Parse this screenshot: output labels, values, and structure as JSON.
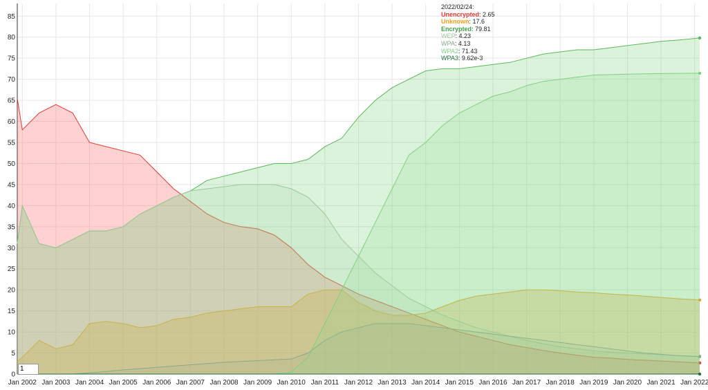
{
  "chart_data": {
    "type": "area",
    "ylim": [
      0,
      88
    ],
    "y_ticks": [
      0,
      5,
      10,
      15,
      20,
      25,
      30,
      35,
      40,
      45,
      50,
      55,
      60,
      65,
      70,
      75,
      80,
      85
    ],
    "x_ticks": [
      "Jan 2002",
      "Jan 2003",
      "Jan 2004",
      "Jan 2005",
      "Jan 2006",
      "Jan 2007",
      "Jan 2008",
      "Jan 2009",
      "Jan 2010",
      "Jan 2011",
      "Jan 2012",
      "Jan 2013",
      "Jan 2014",
      "Jan 2015",
      "Jan 2016",
      "Jan 2017",
      "Jan 2018",
      "Jan 2019",
      "Jan 2020",
      "Jan 2021",
      "Jan 2022"
    ],
    "grid": true,
    "legend_position": "top",
    "x": [
      2001.85,
      2002.0,
      2002.5,
      2003.0,
      2003.5,
      2004.0,
      2004.5,
      2005.0,
      2005.5,
      2006.0,
      2006.5,
      2007.0,
      2007.5,
      2008.0,
      2008.5,
      2009.0,
      2009.5,
      2010.0,
      2010.5,
      2011.0,
      2011.5,
      2012.0,
      2012.5,
      2013.0,
      2013.5,
      2014.0,
      2014.5,
      2015.0,
      2015.5,
      2016.0,
      2016.5,
      2017.0,
      2017.5,
      2018.0,
      2018.5,
      2019.0,
      2019.5,
      2020.0,
      2020.5,
      2021.0,
      2021.5,
      2022.15
    ],
    "series": [
      {
        "name": "Unencrypted",
        "color": "#e53935",
        "fill": "rgba(255,105,105,0.30)",
        "values": [
          65.5,
          58,
          62,
          64,
          62,
          55,
          54,
          53,
          52,
          48,
          44,
          41,
          38,
          36,
          35,
          34.5,
          33,
          30,
          26,
          23,
          21,
          19,
          17.5,
          16,
          14.5,
          13,
          11.5,
          10,
          9,
          8,
          7,
          6.3,
          5.6,
          5,
          4.5,
          4,
          3.8,
          3.5,
          3.3,
          3.1,
          2.9,
          2.65
        ]
      },
      {
        "name": "Unknown",
        "color": "#f0a020",
        "fill": "rgba(240,160,32,0.30)",
        "values": [
          3,
          4,
          8,
          6,
          7,
          12,
          12.5,
          12,
          11,
          11.5,
          13,
          13.5,
          14.5,
          15,
          15.5,
          16,
          16,
          16,
          19,
          20,
          20,
          17,
          15,
          14,
          14,
          14.5,
          16,
          17.5,
          18.5,
          19,
          19.5,
          20,
          20,
          19.8,
          19.5,
          19.3,
          19,
          18.8,
          18.5,
          18.2,
          17.9,
          17.6
        ]
      },
      {
        "name": "Encrypted",
        "color": "#5cb85c",
        "fill": "rgba(110,205,110,0.25)",
        "values": [
          31,
          40,
          31,
          30,
          32,
          34,
          34,
          35,
          38,
          40,
          42,
          43.5,
          46,
          47,
          48,
          49,
          50,
          50,
          51,
          54,
          56,
          61,
          65,
          68,
          70,
          72,
          72.5,
          72.5,
          73,
          73.5,
          74,
          75,
          76,
          76.5,
          77,
          77,
          77.5,
          78,
          78.5,
          79,
          79.3,
          79.81
        ]
      },
      {
        "name": "WEP",
        "color": "#9bc89b",
        "fill": "rgba(160,210,160,0.18)",
        "values": [
          31,
          40,
          31,
          30,
          32,
          34,
          34,
          35,
          38,
          40,
          42,
          43.5,
          44,
          44.5,
          45,
          45,
          45,
          44,
          42,
          38,
          32,
          28,
          24,
          21,
          18,
          16,
          14,
          12.5,
          11,
          10,
          9,
          8,
          7.2,
          6.5,
          6,
          5.5,
          5.2,
          5,
          4.8,
          4.6,
          4.4,
          4.23
        ]
      },
      {
        "name": "WPA",
        "color": "#8aa88a",
        "fill": "rgba(140,170,140,0.15)",
        "values": [
          0,
          0,
          0,
          0,
          0,
          0.3,
          0.6,
          1,
          1.3,
          1.6,
          1.9,
          2.2,
          2.5,
          2.8,
          3,
          3.2,
          3.4,
          3.6,
          5,
          8,
          10,
          11,
          12,
          12,
          12,
          11.5,
          11,
          10.5,
          10,
          9.5,
          9,
          8.5,
          8,
          7.5,
          7,
          6.5,
          6,
          5.5,
          5,
          4.7,
          4.4,
          4.13
        ]
      },
      {
        "name": "WPA2",
        "color": "#7fd07f",
        "fill": "rgba(140,220,140,0.22)",
        "values": [
          0,
          0,
          0,
          0,
          0,
          0,
          0,
          0,
          0,
          0,
          0,
          0,
          0,
          0,
          0,
          0,
          0,
          0.5,
          4,
          12,
          20,
          28,
          36,
          44,
          52,
          55,
          59,
          62,
          64,
          66,
          67,
          68.5,
          69.5,
          70,
          70.5,
          71,
          71.1,
          71.2,
          71.3,
          71.35,
          71.4,
          71.43
        ]
      },
      {
        "name": "WPA3",
        "color": "#1f6f3f",
        "fill": "rgba(31,111,63,0.0)",
        "values": [
          0,
          0,
          0,
          0,
          0,
          0,
          0,
          0,
          0,
          0,
          0,
          0,
          0,
          0,
          0,
          0,
          0,
          0,
          0,
          0,
          0,
          0,
          0,
          0,
          0,
          0,
          0,
          0,
          0,
          0,
          0,
          0,
          0,
          0,
          0,
          0,
          0,
          0,
          0,
          0,
          0.005,
          0.00962
        ]
      }
    ]
  },
  "legend": {
    "date": "2022/02/24:",
    "entries": [
      {
        "name": "Unencrypted",
        "value": "2.65",
        "color": "#e53935",
        "bold": true
      },
      {
        "name": "Unknown",
        "value": "17.6",
        "color": "#f0a020",
        "bold": true
      },
      {
        "name": "Encrypted",
        "value": "79.81",
        "color": "#43a047",
        "bold": true
      },
      {
        "name": "WEP",
        "value": "4.23",
        "color": "#9bc89b",
        "bold": false
      },
      {
        "name": "WPA",
        "value": "4.13",
        "color": "#8aa88a",
        "bold": false
      },
      {
        "name": "WPA2",
        "value": "71.43",
        "color": "#7fd07f",
        "bold": false
      },
      {
        "name": "WPA3",
        "value": "9.62e-3",
        "color": "#1f6f3f",
        "bold": false
      }
    ]
  },
  "roll_period": "1"
}
